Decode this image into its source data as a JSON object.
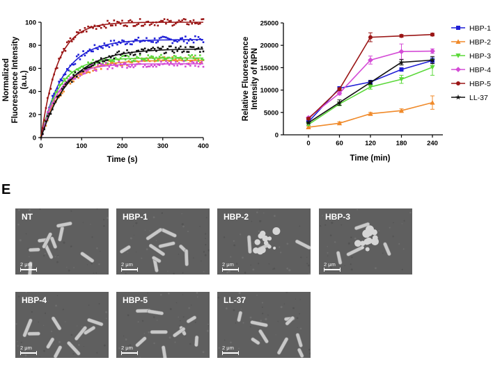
{
  "chart_data": [
    {
      "type": "scatter",
      "xlabel": "Time (s)",
      "ylabel": "Normalized Fluorescence Intensity (a.u.)",
      "xlim": [
        0,
        400
      ],
      "ylim": [
        0,
        100
      ],
      "xticks": [
        "0",
        "100",
        "200",
        "300",
        "400"
      ],
      "yticks": [
        "0",
        "20",
        "40",
        "60",
        "80",
        "100"
      ],
      "grid": false,
      "series": [
        {
          "color": "#1f1fd6",
          "plateau": 85,
          "tau": 55,
          "fit": "one-phase association"
        },
        {
          "color": "#f08a2a",
          "plateau": 67,
          "tau": 55,
          "fit": "one-phase association"
        },
        {
          "color": "#5bd83a",
          "plateau": 69,
          "tau": 45,
          "fit": "one-phase association"
        },
        {
          "color": "#d44bd6",
          "plateau": 64,
          "tau": 45,
          "fit": "one-phase association"
        },
        {
          "color": "#9a1515",
          "plateau": 100,
          "tau": 40,
          "fit": "one-phase association"
        },
        {
          "color": "#111111",
          "plateau": 77,
          "tau": 70,
          "fit": "one-phase association"
        }
      ]
    },
    {
      "type": "line",
      "xlabel": "Time (min)",
      "ylabel": "Relative Fluorescence Intensity of NPN",
      "x": [
        0,
        60,
        120,
        180,
        240
      ],
      "xticks": [
        "0",
        "60",
        "120",
        "180",
        "240"
      ],
      "yticks": [
        "0",
        "5000",
        "10000",
        "15000",
        "20000",
        "25000"
      ],
      "ylim": [
        0,
        25000
      ],
      "legend": "right",
      "series": [
        {
          "name": "HBP-1",
          "color": "#1f1fd6",
          "marker": "square",
          "values": [
            2900,
            10400,
            11800,
            14600,
            16600
          ],
          "err": [
            200,
            300,
            300,
            400,
            600
          ]
        },
        {
          "name": "HBP-2",
          "color": "#f08a2a",
          "marker": "triangle-up",
          "values": [
            1700,
            2600,
            4700,
            5400,
            7200
          ],
          "err": [
            200,
            300,
            300,
            400,
            1500
          ]
        },
        {
          "name": "HBP-3",
          "color": "#5bd83a",
          "marker": "triangle-down",
          "values": [
            2300,
            6900,
            10700,
            12400,
            15100
          ],
          "err": [
            200,
            400,
            500,
            900,
            1800
          ]
        },
        {
          "name": "HBP-4",
          "color": "#d44bd6",
          "marker": "diamond",
          "values": [
            3800,
            9300,
            16700,
            18600,
            18700
          ],
          "err": [
            200,
            400,
            900,
            1700,
            500
          ]
        },
        {
          "name": "HBP-5",
          "color": "#9a1515",
          "marker": "circle",
          "values": [
            3600,
            10200,
            21800,
            22100,
            22400
          ],
          "err": [
            200,
            300,
            1000,
            300,
            300
          ]
        },
        {
          "name": "LL-37",
          "color": "#111111",
          "marker": "star",
          "values": [
            2700,
            7200,
            11700,
            16200,
            16700
          ],
          "err": [
            200,
            600,
            400,
            600,
            800
          ]
        }
      ]
    }
  ],
  "panel_letter": "E",
  "micrographs": [
    {
      "label": "NT",
      "scale": "2 μm"
    },
    {
      "label": "HBP-1",
      "scale": "2 μm"
    },
    {
      "label": "HBP-2",
      "scale": "2 μm"
    },
    {
      "label": "HBP-3",
      "scale": "2 μm"
    },
    {
      "label": "HBP-4",
      "scale": "2 μm"
    },
    {
      "label": "HBP-5",
      "scale": "2 μm"
    },
    {
      "label": "LL-37",
      "scale": "2 μm"
    }
  ]
}
